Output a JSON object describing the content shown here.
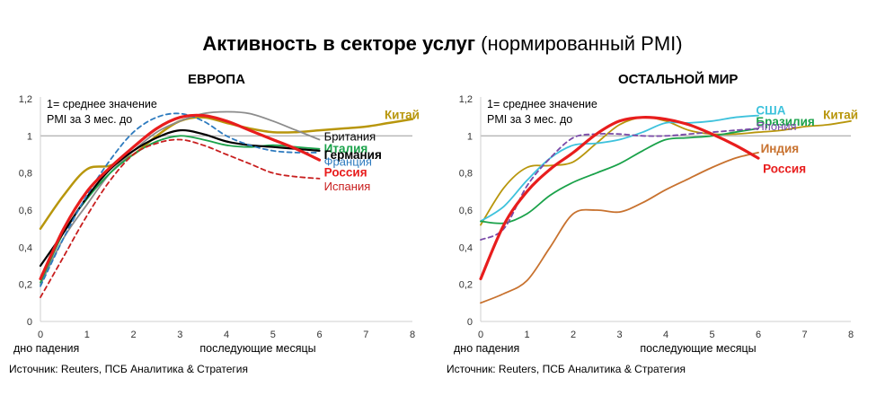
{
  "title": {
    "bold": "Активность в секторе услуг",
    "normal": " (нормированный PMI)"
  },
  "chart_data": [
    {
      "type": "line",
      "title": "ЕВРОПА",
      "note_lines": [
        "1= среднее значение",
        "PMI за 3 мес. до"
      ],
      "xlabel_left": "дно падения",
      "xlabel": "последующие месяцы",
      "source": "Источник: Reuters, ПСБ Аналитика & Стратегия",
      "xlim": [
        0,
        8
      ],
      "ylim": [
        0,
        1.2
      ],
      "x_ticks": [
        "0",
        "1",
        "2",
        "3",
        "4",
        "5",
        "6",
        "7",
        "8"
      ],
      "y_ticks": [
        "0",
        "0,2",
        "0,4",
        "0,6",
        "0,8",
        "1",
        "1,2"
      ],
      "reference_line": 1,
      "series": [
        {
          "name": "Китай",
          "color": "#b8960c",
          "width": 2.5,
          "dash": "",
          "x": [
            0,
            0.5,
            1,
            1.5,
            2,
            2.5,
            3,
            3.5,
            4,
            4.5,
            5,
            5.5,
            6,
            6.5,
            7,
            7.5,
            8
          ],
          "y": [
            0.5,
            0.68,
            0.82,
            0.84,
            0.9,
            1.0,
            1.08,
            1.1,
            1.07,
            1.04,
            1.02,
            1.02,
            1.03,
            1.04,
            1.05,
            1.07,
            1.09
          ]
        },
        {
          "name": "Британия",
          "color": "#8c8c8c",
          "width": 1.8,
          "dash": "",
          "x": [
            0,
            0.5,
            1,
            1.5,
            2,
            2.5,
            3,
            3.5,
            4,
            4.5,
            5,
            5.5,
            6
          ],
          "y": [
            0.2,
            0.45,
            0.63,
            0.8,
            0.92,
            1.02,
            1.08,
            1.12,
            1.13,
            1.12,
            1.08,
            1.03,
            0.98
          ]
        },
        {
          "name": "Италия",
          "color": "#1aa24a",
          "width": 1.8,
          "dash": "",
          "x": [
            0,
            0.5,
            1,
            1.5,
            2,
            2.5,
            3,
            3.5,
            4,
            4.5,
            5,
            5.5,
            6
          ],
          "y": [
            0.21,
            0.48,
            0.66,
            0.8,
            0.9,
            0.97,
            1.0,
            0.98,
            0.95,
            0.94,
            0.95,
            0.94,
            0.93
          ]
        },
        {
          "name": "Германия",
          "color": "#000000",
          "width": 2.2,
          "dash": "",
          "x": [
            0,
            0.5,
            1,
            1.5,
            2,
            2.5,
            3,
            3.5,
            4,
            4.5,
            5,
            5.5,
            6
          ],
          "y": [
            0.3,
            0.48,
            0.67,
            0.82,
            0.92,
            0.99,
            1.03,
            1.01,
            0.97,
            0.95,
            0.94,
            0.93,
            0.92
          ]
        },
        {
          "name": "Франция",
          "color": "#2e7bbf",
          "width": 1.8,
          "dash": "5,4",
          "x": [
            0,
            0.5,
            1,
            1.5,
            2,
            2.5,
            3,
            3.5,
            4,
            4.5,
            5,
            5.5,
            6
          ],
          "y": [
            0.19,
            0.45,
            0.68,
            0.87,
            1.02,
            1.1,
            1.12,
            1.08,
            1.0,
            0.95,
            0.92,
            0.91,
            0.91
          ]
        },
        {
          "name": "Россия",
          "color": "#e81d1d",
          "width": 3.2,
          "dash": "",
          "x": [
            0,
            0.5,
            1,
            1.5,
            2,
            2.5,
            3,
            3.5,
            4,
            4.5,
            5,
            5.5,
            6
          ],
          "y": [
            0.23,
            0.5,
            0.7,
            0.83,
            0.94,
            1.04,
            1.1,
            1.11,
            1.08,
            1.03,
            0.98,
            0.93,
            0.87
          ]
        },
        {
          "name": "Испания",
          "color": "#c81e1e",
          "width": 1.8,
          "dash": "5,4",
          "x": [
            0,
            0.5,
            1,
            1.5,
            2,
            2.5,
            3,
            3.5,
            4,
            4.5,
            5,
            5.5,
            6
          ],
          "y": [
            0.13,
            0.35,
            0.57,
            0.76,
            0.9,
            0.96,
            0.98,
            0.95,
            0.9,
            0.85,
            0.8,
            0.78,
            0.77
          ]
        }
      ],
      "labels": [
        {
          "text": "Китай",
          "color": "#b8960c",
          "bold": true,
          "x": 7.4,
          "y": 1.11
        },
        {
          "text": "Британия",
          "color": "#000000",
          "bold": false,
          "x": 6.1,
          "y": 0.995
        },
        {
          "text": "Италия",
          "color": "#1aa24a",
          "bold": true,
          "x": 6.1,
          "y": 0.93
        },
        {
          "text": "Германия",
          "color": "#000000",
          "bold": true,
          "x": 6.1,
          "y": 0.895
        },
        {
          "text": "Франция",
          "color": "#2e7bbf",
          "bold": false,
          "x": 6.1,
          "y": 0.86
        },
        {
          "text": "Россия",
          "color": "#e81d1d",
          "bold": true,
          "x": 6.1,
          "y": 0.8
        },
        {
          "text": "Испания",
          "color": "#c81e1e",
          "bold": false,
          "x": 6.1,
          "y": 0.725
        }
      ]
    },
    {
      "type": "line",
      "title": "ОСТАЛЬНОЙ МИР",
      "note_lines": [
        "1= среднее значение",
        "PMI за 3 мес. до"
      ],
      "xlabel_left": "дно падения",
      "xlabel": "последующие месяцы",
      "source": "Источник: Reuters, ПСБ Аналитика & Стратегия",
      "xlim": [
        0,
        8
      ],
      "ylim": [
        0,
        1.2
      ],
      "x_ticks": [
        "0",
        "1",
        "2",
        "3",
        "4",
        "5",
        "6",
        "7",
        "8"
      ],
      "y_ticks": [
        "0",
        "0,2",
        "0,4",
        "0,6",
        "0,8",
        "1",
        "1,2"
      ],
      "reference_line": 1,
      "series": [
        {
          "name": "Китай",
          "color": "#b8960c",
          "width": 1.8,
          "dash": "",
          "x": [
            0,
            0.5,
            1,
            1.5,
            2,
            2.5,
            3,
            3.5,
            4,
            4.5,
            5,
            5.5,
            6,
            6.5,
            7,
            7.5,
            8
          ],
          "y": [
            0.52,
            0.72,
            0.83,
            0.84,
            0.86,
            0.96,
            1.06,
            1.1,
            1.08,
            1.03,
            1.01,
            1.01,
            1.02,
            1.03,
            1.05,
            1.06,
            1.08
          ]
        },
        {
          "name": "США",
          "color": "#3ec2dc",
          "width": 1.8,
          "dash": "",
          "x": [
            0,
            0.5,
            1,
            1.5,
            2,
            2.5,
            3,
            3.5,
            4,
            4.5,
            5,
            5.5,
            6
          ],
          "y": [
            0.54,
            0.62,
            0.76,
            0.88,
            0.95,
            0.96,
            0.98,
            1.02,
            1.07,
            1.07,
            1.08,
            1.1,
            1.11
          ]
        },
        {
          "name": "Бразилия",
          "color": "#1aa24a",
          "width": 1.8,
          "dash": "",
          "x": [
            0,
            0.5,
            1,
            1.5,
            2,
            2.5,
            3,
            3.5,
            4,
            4.5,
            5,
            5.5,
            6
          ],
          "y": [
            0.54,
            0.53,
            0.58,
            0.68,
            0.75,
            0.8,
            0.85,
            0.92,
            0.98,
            0.99,
            1.0,
            1.02,
            1.04
          ]
        },
        {
          "name": "Япония",
          "color": "#7a4ba8",
          "width": 1.8,
          "dash": "5,4",
          "x": [
            0,
            0.5,
            1,
            1.5,
            2,
            2.5,
            3,
            3.5,
            4,
            4.5,
            5,
            5.5,
            6
          ],
          "y": [
            0.44,
            0.5,
            0.73,
            0.88,
            0.99,
            1.01,
            1.01,
            1.0,
            1.0,
            1.01,
            1.02,
            1.03,
            1.04
          ]
        },
        {
          "name": "Индия",
          "color": "#c8722f",
          "width": 1.8,
          "dash": "",
          "x": [
            0,
            0.5,
            1,
            1.5,
            2,
            2.5,
            3,
            3.5,
            4,
            4.5,
            5,
            5.5,
            6
          ],
          "y": [
            0.1,
            0.15,
            0.22,
            0.4,
            0.58,
            0.6,
            0.59,
            0.64,
            0.71,
            0.77,
            0.83,
            0.88,
            0.91
          ]
        },
        {
          "name": "Россия",
          "color": "#e81d1d",
          "width": 3.2,
          "dash": "",
          "x": [
            0,
            0.5,
            1,
            1.5,
            2,
            2.5,
            3,
            3.5,
            4,
            4.5,
            5,
            5.5,
            6
          ],
          "y": [
            0.23,
            0.52,
            0.7,
            0.82,
            0.91,
            1.01,
            1.08,
            1.1,
            1.09,
            1.06,
            1.01,
            0.95,
            0.88
          ]
        }
      ],
      "labels": [
        {
          "text": "Китай",
          "color": "#b8960c",
          "bold": true,
          "x": 7.4,
          "y": 1.11
        },
        {
          "text": "США",
          "color": "#3ec2dc",
          "bold": true,
          "x": 5.95,
          "y": 1.135
        },
        {
          "text": "Бразилия",
          "color": "#1aa24a",
          "bold": true,
          "x": 5.95,
          "y": 1.075
        },
        {
          "text": "Япония",
          "color": "#7a4ba8",
          "bold": false,
          "x": 5.95,
          "y": 1.05
        },
        {
          "text": "Индия",
          "color": "#c8722f",
          "bold": true,
          "x": 6.05,
          "y": 0.93
        },
        {
          "text": "Россия",
          "color": "#e81d1d",
          "bold": true,
          "x": 6.1,
          "y": 0.82
        }
      ]
    }
  ]
}
